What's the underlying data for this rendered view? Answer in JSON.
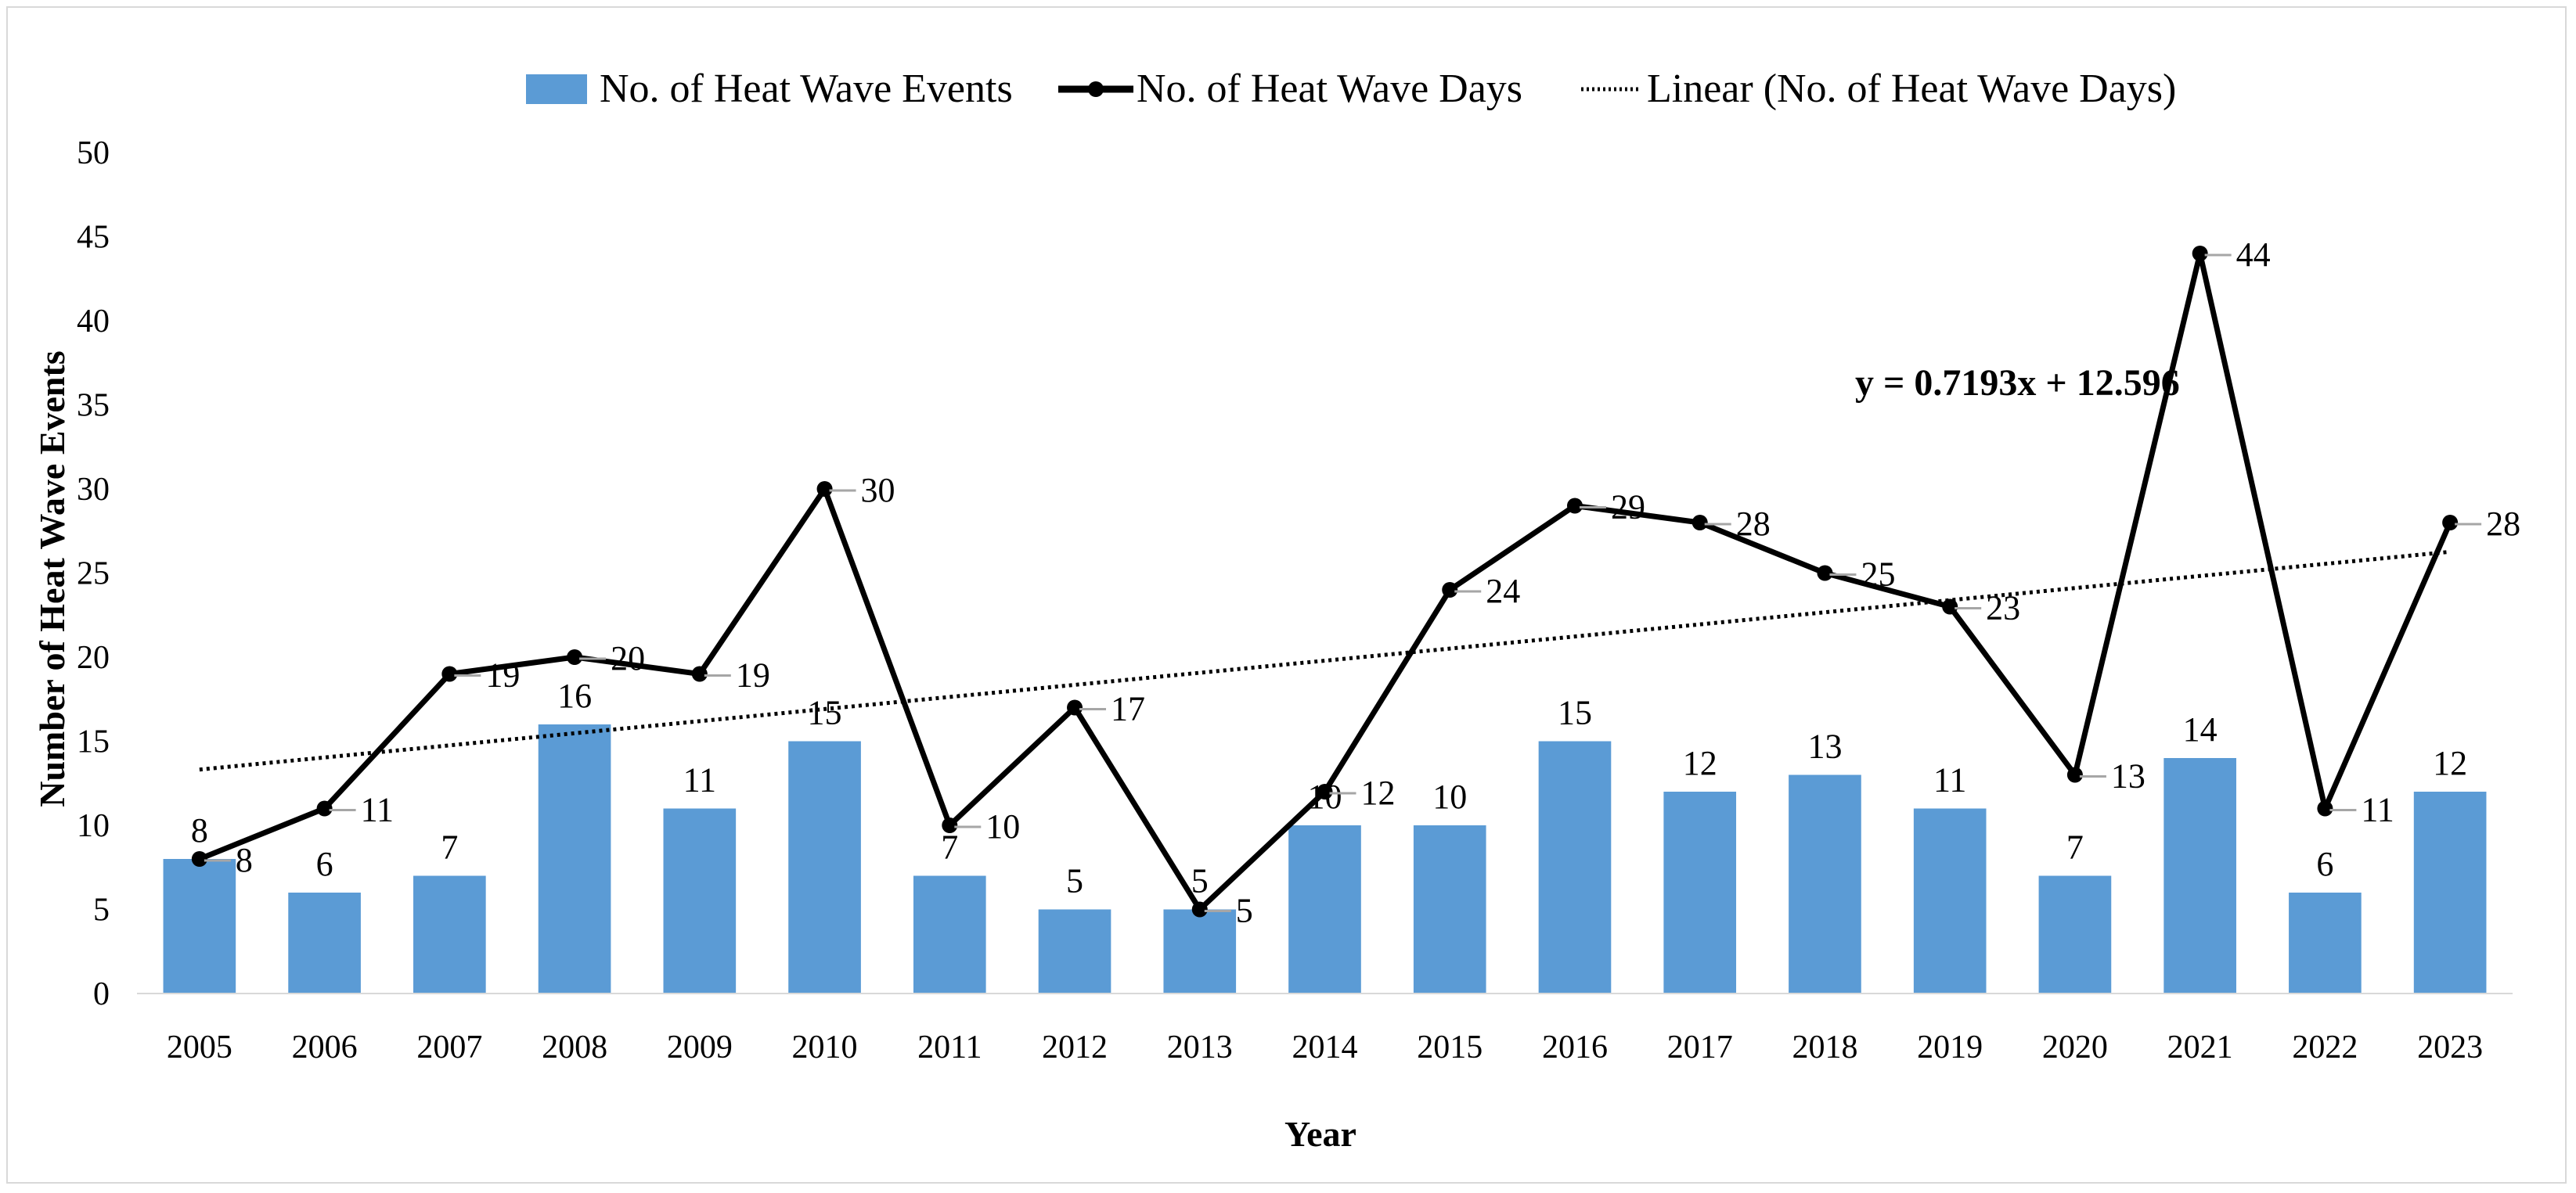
{
  "chart_data": {
    "type": "bar",
    "title": "",
    "xlabel": "Year",
    "ylabel": "Number of Heat Wave Events",
    "ylim": [
      0,
      50
    ],
    "yticks": [
      0,
      5,
      10,
      15,
      20,
      25,
      30,
      35,
      40,
      45,
      50
    ],
    "grid": false,
    "legend_position": "top",
    "categories": [
      "2005",
      "2006",
      "2007",
      "2008",
      "2009",
      "2010",
      "2011",
      "2012",
      "2013",
      "2014",
      "2015",
      "2016",
      "2017",
      "2018",
      "2019",
      "2020",
      "2021",
      "2022",
      "2023"
    ],
    "series": [
      {
        "name": "No. of Heat Wave Events",
        "type": "bar",
        "color": "#5b9bd5",
        "values": [
          8,
          6,
          7,
          16,
          11,
          15,
          7,
          5,
          5,
          10,
          10,
          15,
          12,
          13,
          11,
          7,
          14,
          6,
          12
        ]
      },
      {
        "name": "No. of Heat Wave Days",
        "type": "line",
        "color": "#000000",
        "values": [
          8,
          11,
          19,
          20,
          19,
          30,
          10,
          17,
          5,
          12,
          24,
          29,
          28,
          25,
          23,
          13,
          44,
          11,
          28
        ]
      },
      {
        "name": "Linear (No. of Heat Wave Days)",
        "type": "trendline",
        "color": "#000000",
        "slope": 0.7193,
        "intercept": 12.596
      }
    ],
    "annotations": [
      {
        "text": "y = 0.7193x + 12.596"
      }
    ]
  }
}
